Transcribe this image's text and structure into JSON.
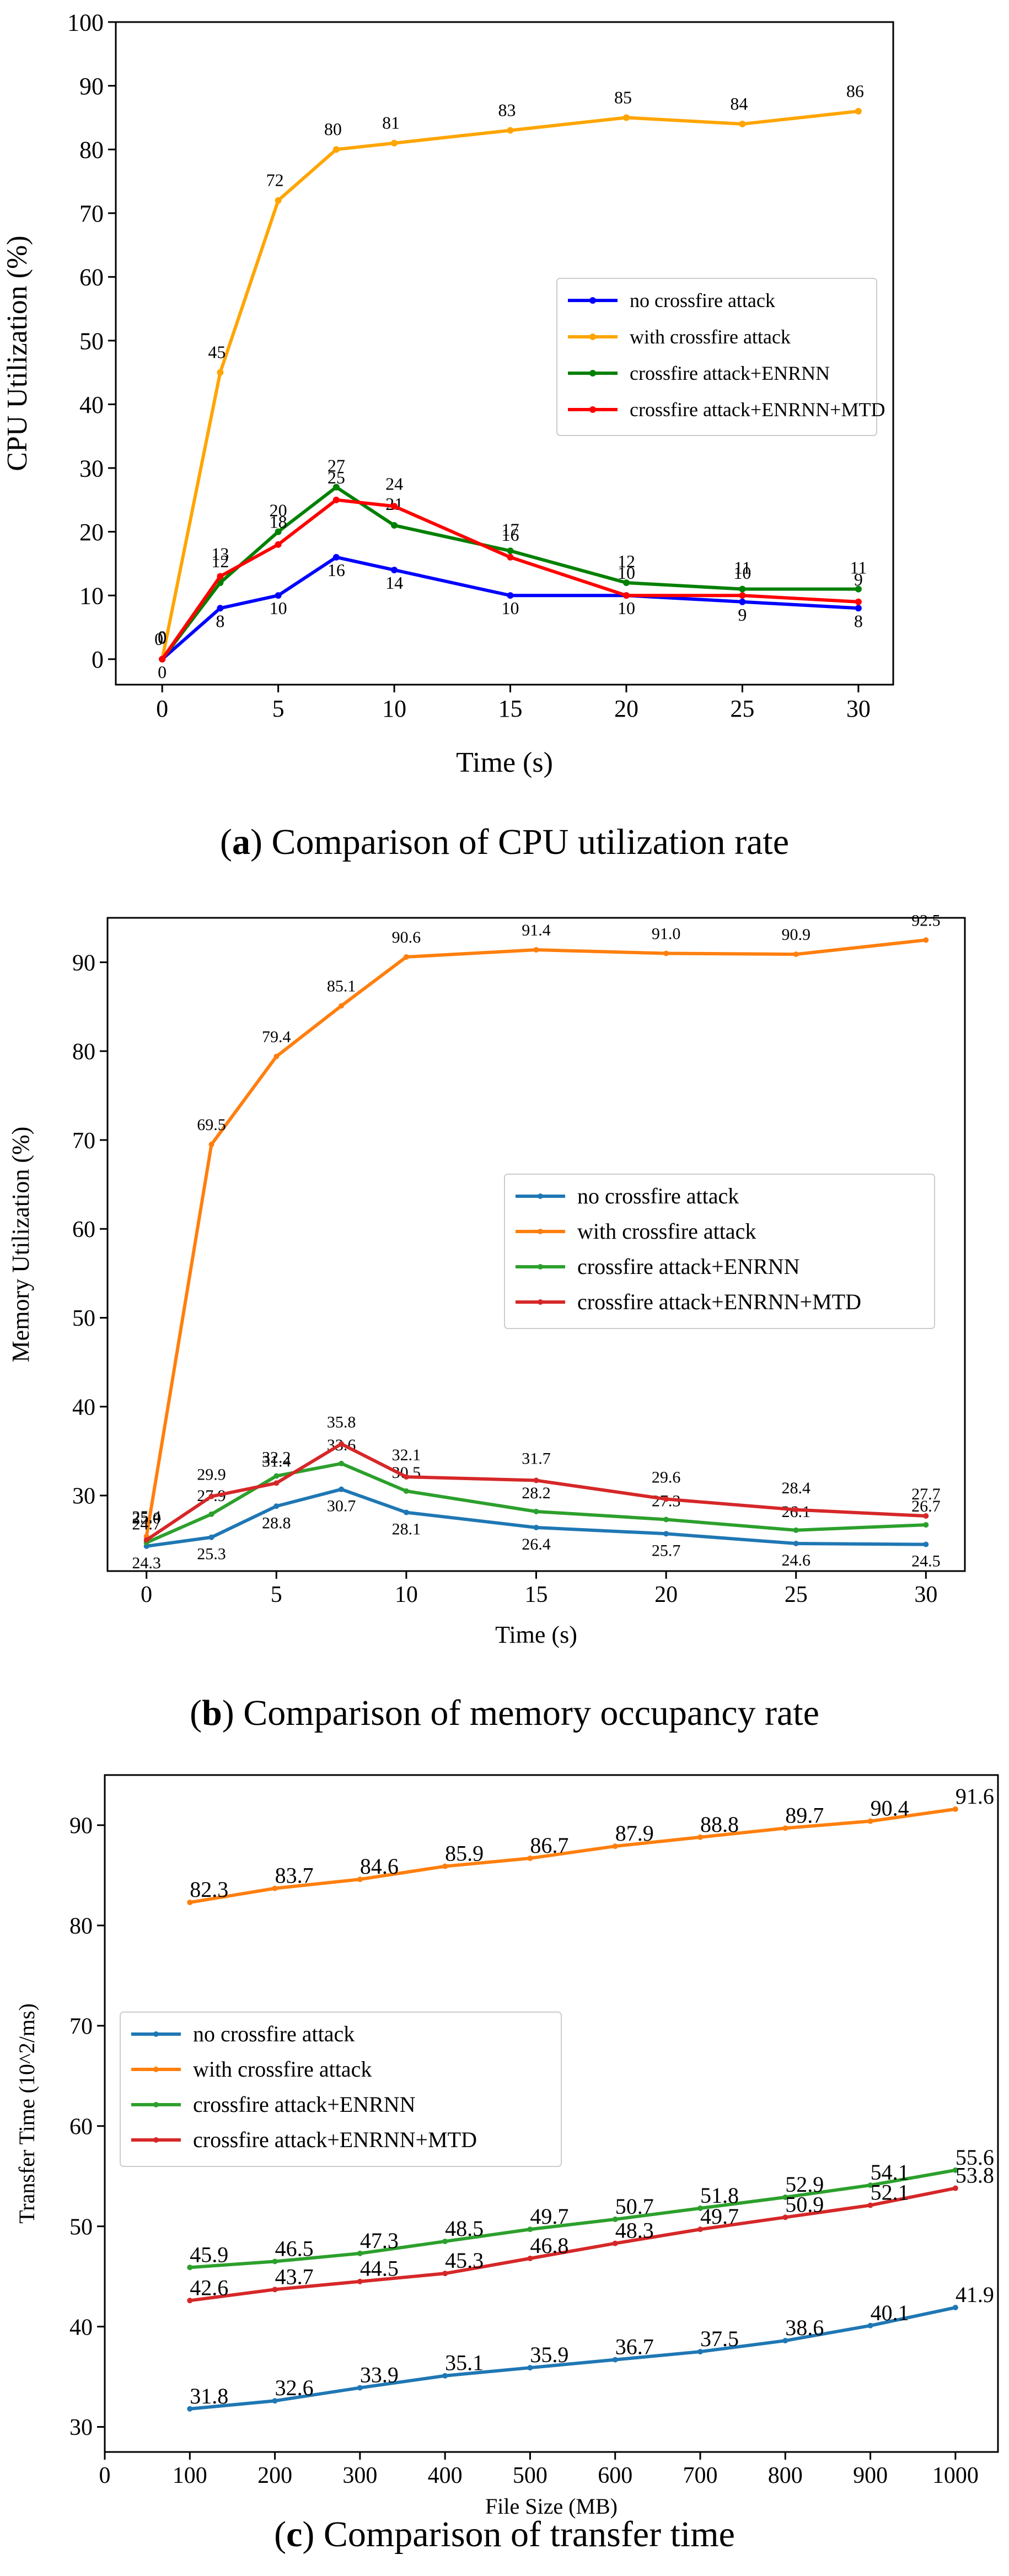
{
  "charts": [
    {
      "id": "a",
      "caption": {
        "letter": "a",
        "text": "Comparison of CPU utilization rate"
      },
      "chart_data": {
        "type": "line",
        "title": "",
        "xlabel": "Time (s)",
        "ylabel": "CPU Utilization (%)",
        "xlim": [
          -2,
          31.5
        ],
        "ylim": [
          -4,
          100
        ],
        "xticks": [
          0,
          5,
          10,
          15,
          20,
          25,
          30
        ],
        "yticks": [
          0,
          10,
          20,
          30,
          40,
          50,
          60,
          70,
          80,
          90,
          100
        ],
        "x": [
          0,
          2.5,
          5,
          7.5,
          10,
          15,
          20,
          25,
          30
        ],
        "legend_position": "center-right",
        "series": [
          {
            "name": "no crossfire attack",
            "color": "#0000ff",
            "values": [
              0,
              8,
              10,
              16,
              14,
              10,
              10,
              9,
              8
            ],
            "labels": [
              "0",
              "8",
              "10",
              "16",
              "14",
              "10",
              "10",
              "9",
              "8"
            ]
          },
          {
            "name": "with crossfire attack",
            "color": "#ffa500",
            "values": [
              0,
              45,
              72,
              80,
              81,
              83,
              85,
              84,
              86
            ],
            "labels": [
              "0",
              "45",
              "72",
              "80",
              "81",
              "83",
              "85",
              "84",
              "86"
            ]
          },
          {
            "name": "crossfire attack+ENRNN",
            "color": "#008000",
            "values": [
              0,
              12,
              20,
              27,
              21,
              17,
              12,
              11,
              11
            ],
            "labels": [
              "0",
              "12",
              "20",
              "27",
              "21",
              "17",
              "12",
              "11",
              "11"
            ]
          },
          {
            "name": "crossfire attack+ENRNN+MTD",
            "color": "#ff0000",
            "values": [
              0,
              13,
              18,
              25,
              24,
              16,
              10,
              10,
              9
            ],
            "labels": [
              "0",
              "13",
              "18",
              "25",
              "24",
              "16",
              "10",
              "10",
              "9"
            ]
          }
        ]
      }
    },
    {
      "id": "b",
      "caption": {
        "letter": "b",
        "text": "Comparison of memory occupancy rate"
      },
      "chart_data": {
        "type": "line",
        "title": "",
        "xlabel": "Time (s)",
        "ylabel": "Memory Utilization (%)",
        "xlim": [
          -1.5,
          31.5
        ],
        "ylim": [
          21.5,
          95
        ],
        "xticks": [
          0,
          5,
          10,
          15,
          20,
          25,
          30
        ],
        "yticks": [
          30,
          40,
          50,
          60,
          70,
          80,
          90
        ],
        "x": [
          0,
          2.5,
          5,
          7.5,
          10,
          15,
          20,
          25,
          30
        ],
        "legend_position": "center-right",
        "series": [
          {
            "name": "no crossfire attack",
            "color": "#1f77b4",
            "values": [
              24.3,
              25.3,
              28.8,
              30.7,
              28.1,
              26.4,
              25.7,
              24.6,
              24.5
            ],
            "labels": [
              "24.3",
              "25.3",
              "28.8",
              "30.7",
              "28.1",
              "26.4",
              "25.7",
              "24.6",
              "24.5"
            ]
          },
          {
            "name": "with crossfire attack",
            "color": "#ff7f0e",
            "values": [
              25.4,
              69.5,
              79.4,
              85.1,
              90.6,
              91.4,
              91.0,
              90.9,
              92.5
            ],
            "labels": [
              "25.4",
              "69.5",
              "79.4",
              "85.1",
              "90.6",
              "91.4",
              "91.0",
              "90.9",
              "92.5"
            ]
          },
          {
            "name": "crossfire attack+ENRNN",
            "color": "#2ca02c",
            "values": [
              24.7,
              27.9,
              32.2,
              33.6,
              30.5,
              28.2,
              27.3,
              26.1,
              26.7
            ],
            "labels": [
              "24.7",
              "27.9",
              "32.2",
              "33.6",
              "30.5",
              "28.2",
              "27.3",
              "26.1",
              "26.7"
            ]
          },
          {
            "name": "crossfire attack+ENRNN+MTD",
            "color": "#d62728",
            "values": [
              25.0,
              29.9,
              31.4,
              35.8,
              32.1,
              31.7,
              29.6,
              28.4,
              27.7
            ],
            "labels": [
              "25.0",
              "29.9",
              "31.4",
              "35.8",
              "32.1",
              "31.7",
              "29.6",
              "28.4",
              "27.7"
            ]
          }
        ]
      }
    },
    {
      "id": "c",
      "caption": {
        "letter": "c",
        "text": "Comparison of transfer time"
      },
      "chart_data": {
        "type": "line",
        "title": "",
        "xlabel": "File Size (MB)",
        "ylabel": "Transfer Time (10^2/ms)",
        "xlim": [
          0,
          1050
        ],
        "ylim": [
          27.5,
          95
        ],
        "xticks": [
          0,
          100,
          200,
          300,
          400,
          500,
          600,
          700,
          800,
          900,
          1000
        ],
        "yticks": [
          30,
          40,
          50,
          60,
          70,
          80,
          90
        ],
        "x": [
          100,
          200,
          300,
          400,
          500,
          600,
          700,
          800,
          900,
          1000
        ],
        "legend_position": "center-left",
        "series": [
          {
            "name": "no crossfire attack",
            "color": "#1f77b4",
            "values": [
              31.8,
              32.6,
              33.9,
              35.1,
              35.9,
              36.7,
              37.5,
              38.6,
              40.1,
              41.9
            ],
            "labels": [
              "31.8",
              "32.6",
              "33.9",
              "35.1",
              "35.9",
              "36.7",
              "37.5",
              "38.6",
              "40.1",
              "41.9"
            ]
          },
          {
            "name": "with crossfire attack",
            "color": "#ff7f0e",
            "values": [
              82.3,
              83.7,
              84.6,
              85.9,
              86.7,
              87.9,
              88.8,
              89.7,
              90.4,
              91.6
            ],
            "labels": [
              "82.3",
              "83.7",
              "84.6",
              "85.9",
              "86.7",
              "87.9",
              "88.8",
              "89.7",
              "90.4",
              "91.6"
            ]
          },
          {
            "name": "crossfire attack+ENRNN",
            "color": "#2ca02c",
            "values": [
              45.9,
              46.5,
              47.3,
              48.5,
              49.7,
              50.7,
              51.8,
              52.9,
              54.1,
              55.6
            ],
            "labels": [
              "45.9",
              "46.5",
              "47.3",
              "48.5",
              "49.7",
              "50.7",
              "51.8",
              "52.9",
              "54.1",
              "55.6"
            ]
          },
          {
            "name": "crossfire attack+ENRNN+MTD",
            "color": "#d62728",
            "values": [
              42.6,
              43.7,
              44.5,
              45.3,
              46.8,
              48.3,
              49.7,
              50.9,
              52.1,
              53.8
            ],
            "labels": [
              "42.6",
              "43.7",
              "44.5",
              "45.3",
              "46.8",
              "48.3",
              "49.7",
              "50.9",
              "52.1",
              "53.8"
            ]
          }
        ]
      }
    }
  ]
}
